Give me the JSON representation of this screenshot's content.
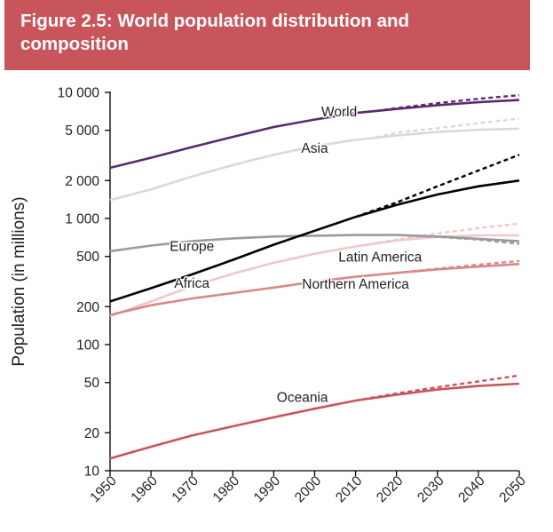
{
  "header": {
    "title": "Figure 2.5: World population distribution and composition"
  },
  "chart_data": {
    "type": "line",
    "ylabel": "Population (in millions)",
    "xlabel": "",
    "yscale": "log",
    "ylim": [
      10,
      10000
    ],
    "xlim": [
      1950,
      2050
    ],
    "yticks": [
      {
        "value": 10,
        "label": "10"
      },
      {
        "value": 20,
        "label": "20"
      },
      {
        "value": 50,
        "label": "50"
      },
      {
        "value": 100,
        "label": "100"
      },
      {
        "value": 200,
        "label": "200"
      },
      {
        "value": 500,
        "label": "500"
      },
      {
        "value": 1000,
        "label": "1 000"
      },
      {
        "value": 2000,
        "label": "2 000"
      },
      {
        "value": 5000,
        "label": "5 000"
      },
      {
        "value": 10000,
        "label": "10 000"
      }
    ],
    "xticks": [
      1950,
      1960,
      1970,
      1980,
      1990,
      2000,
      2010,
      2020,
      2030,
      2040,
      2050
    ],
    "series": [
      {
        "name": "World",
        "color": "#5b2a6e",
        "label_at": [
          2006,
          7000
        ],
        "x": [
          1950,
          1960,
          1970,
          1980,
          1990,
          2000,
          2010,
          2020,
          2030,
          2040,
          2050
        ],
        "values": [
          2525,
          3030,
          3680,
          4440,
          5310,
          6090,
          6860,
          7380,
          7900,
          8350,
          8700
        ],
        "projection_x": [
          2015,
          2020,
          2030,
          2040,
          2050
        ],
        "projection_values": [
          7100,
          7500,
          8200,
          8900,
          9500
        ]
      },
      {
        "name": "Asia",
        "color": "#d9d9d9",
        "label_at": [
          2000,
          3600
        ],
        "x": [
          1950,
          1960,
          1970,
          1980,
          1990,
          2000,
          2010,
          2020,
          2030,
          2040,
          2050
        ],
        "values": [
          1400,
          1700,
          2150,
          2650,
          3200,
          3750,
          4200,
          4550,
          4850,
          5050,
          5150
        ],
        "projection_x": [
          2015,
          2020,
          2030,
          2040,
          2050
        ],
        "projection_values": [
          4400,
          4800,
          5200,
          5700,
          6200
        ]
      },
      {
        "name": "Africa",
        "color": "#000000",
        "label_at": [
          1970,
          305
        ],
        "x": [
          1950,
          1960,
          1970,
          1980,
          1990,
          2000,
          2010,
          2020,
          2030,
          2040,
          2050
        ],
        "values": [
          220,
          280,
          360,
          470,
          620,
          800,
          1030,
          1280,
          1550,
          1800,
          2000
        ],
        "projection_x": [
          2010,
          2020,
          2030,
          2040,
          2050
        ],
        "projection_values": [
          1030,
          1340,
          1800,
          2400,
          3200
        ]
      },
      {
        "name": "Europe",
        "color": "#9b9b9b",
        "label_at": [
          1970,
          600
        ],
        "x": [
          1950,
          1960,
          1970,
          1980,
          1990,
          2000,
          2010,
          2020,
          2030,
          2040,
          2050
        ],
        "values": [
          550,
          610,
          660,
          695,
          720,
          730,
          740,
          740,
          720,
          690,
          660
        ],
        "projection_x": [
          2020,
          2030,
          2040,
          2050
        ],
        "projection_values": [
          740,
          715,
          680,
          630
        ]
      },
      {
        "name": "Latin America",
        "color": "#f0c8c8",
        "label_at": [
          2016,
          495
        ],
        "x": [
          1950,
          1960,
          1970,
          1980,
          1990,
          2000,
          2010,
          2020,
          2030,
          2040,
          2050
        ],
        "values": [
          168,
          220,
          290,
          365,
          445,
          525,
          600,
          670,
          715,
          735,
          735
        ],
        "projection_x": [
          2010,
          2020,
          2030,
          2040,
          2050
        ],
        "projection_values": [
          600,
          680,
          760,
          840,
          910
        ]
      },
      {
        "name": "Northern America",
        "color": "#d9888a",
        "label_at": [
          2010,
          300
        ],
        "x": [
          1950,
          1960,
          1970,
          1980,
          1990,
          2000,
          2010,
          2020,
          2030,
          2040,
          2050
        ],
        "values": [
          172,
          205,
          232,
          256,
          283,
          315,
          345,
          370,
          395,
          415,
          435
        ],
        "projection_x": [
          2020,
          2030,
          2040,
          2050
        ],
        "projection_values": [
          370,
          400,
          430,
          460
        ]
      },
      {
        "name": "Oceania",
        "color": "#c8555b",
        "label_at": [
          1997,
          38
        ],
        "x": [
          1950,
          1960,
          1970,
          1980,
          1990,
          2000,
          2010,
          2020,
          2030,
          2040,
          2050
        ],
        "values": [
          12.5,
          15.5,
          19,
          22.5,
          26.5,
          31,
          36,
          40,
          44,
          47,
          49
        ],
        "projection_x": [
          2010,
          2020,
          2030,
          2040,
          2050
        ],
        "projection_values": [
          36,
          41,
          46,
          51,
          57
        ]
      }
    ]
  }
}
